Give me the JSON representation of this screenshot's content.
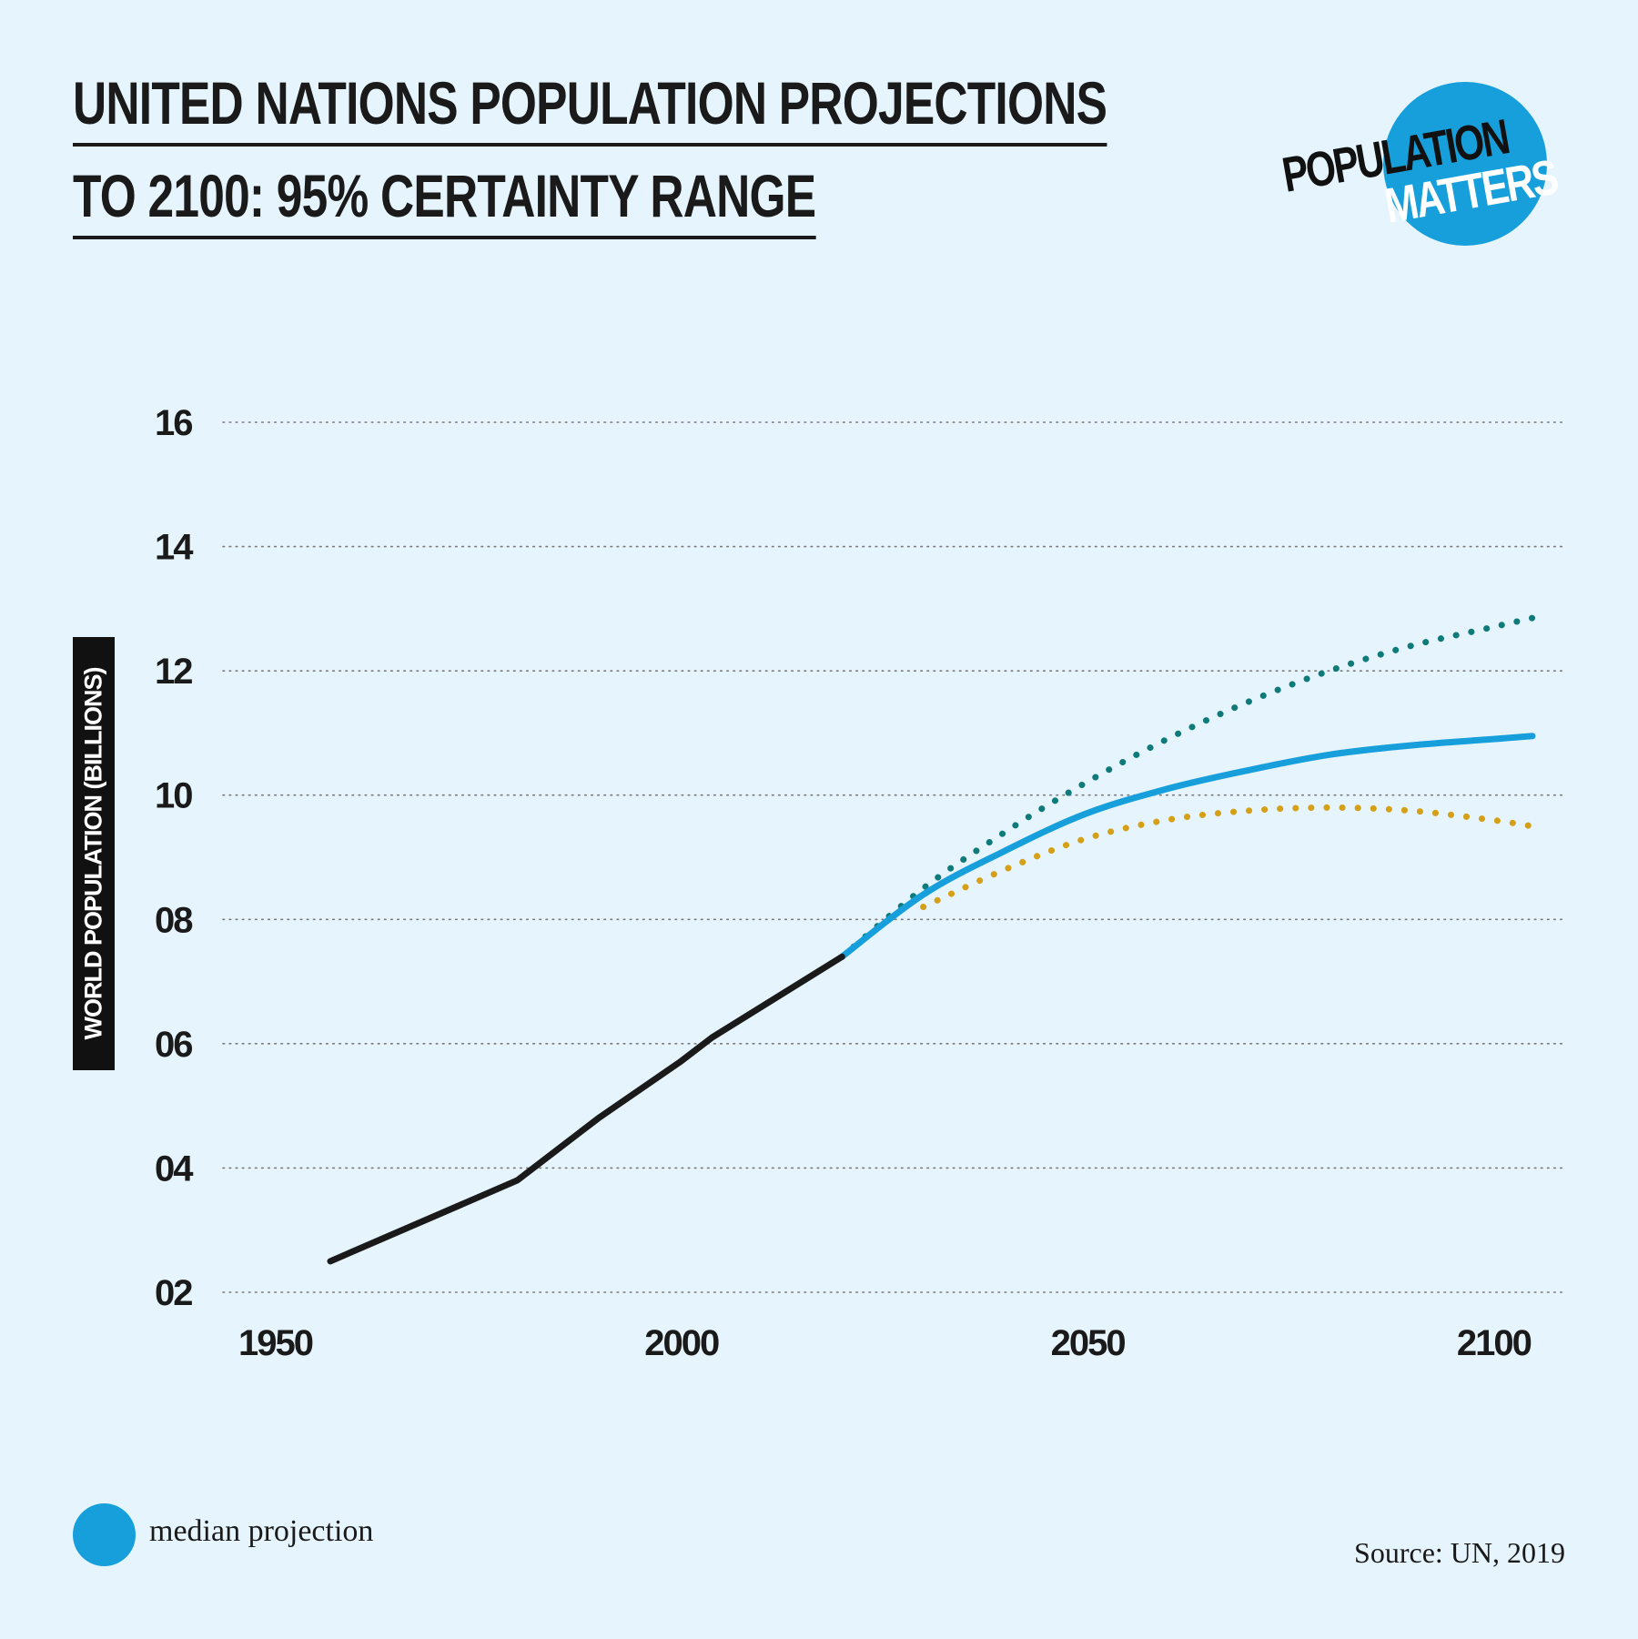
{
  "title_lines": [
    "UNITED NATIONS POPULATION PROJECTIONS",
    "TO 2100: 95% CERTAINTY RANGE"
  ],
  "logo": {
    "text_top": "POPULATION",
    "text_bottom": "MATTERS",
    "color": "#169fdb"
  },
  "legend": {
    "label": "median projection",
    "color": "#169fdb"
  },
  "source": "Source: UN, 2019",
  "chart_data": {
    "type": "line",
    "ylabel": "WORLD POPULATION (BILLIONS)",
    "xlim": [
      1945,
      2105
    ],
    "ylim": [
      2,
      16
    ],
    "x_ticks": [
      1950,
      2000,
      2050,
      2100
    ],
    "x_tick_labels": [
      "1950",
      "2000",
      "2050",
      "2100"
    ],
    "y_ticks": [
      2,
      4,
      6,
      8,
      10,
      12,
      14,
      16
    ],
    "y_tick_labels": [
      "02",
      "04",
      "06",
      "08",
      "10",
      "12",
      "14",
      "16"
    ],
    "grid": true,
    "series": [
      {
        "key": "historical",
        "style": "solid",
        "color": "#1a1a1a",
        "x": [
          1957,
          1980,
          1990,
          2000,
          2004,
          2020
        ],
        "y": [
          2.5,
          3.8,
          4.8,
          5.7,
          6.1,
          7.4
        ]
      },
      {
        "key": "upper",
        "style": "dotted",
        "color": "#0e7a7a",
        "x": [
          2020,
          2030,
          2040,
          2050,
          2060,
          2070,
          2080,
          2090,
          2100,
          2105
        ],
        "y": [
          7.4,
          8.5,
          9.4,
          10.2,
          10.9,
          11.5,
          12.0,
          12.4,
          12.7,
          12.85
        ]
      },
      {
        "name": "median projection",
        "key": "median",
        "style": "solid",
        "color": "#169fdb",
        "x": [
          2020,
          2030,
          2040,
          2050,
          2060,
          2070,
          2080,
          2090,
          2100,
          2105
        ],
        "y": [
          7.4,
          8.4,
          9.1,
          9.7,
          10.1,
          10.4,
          10.65,
          10.8,
          10.9,
          10.95
        ]
      },
      {
        "key": "lower",
        "style": "dotted",
        "color": "#d4a017",
        "x": [
          2030,
          2040,
          2050,
          2060,
          2070,
          2080,
          2090,
          2100,
          2105
        ],
        "y": [
          8.2,
          8.8,
          9.3,
          9.6,
          9.75,
          9.8,
          9.75,
          9.6,
          9.5
        ]
      }
    ]
  }
}
